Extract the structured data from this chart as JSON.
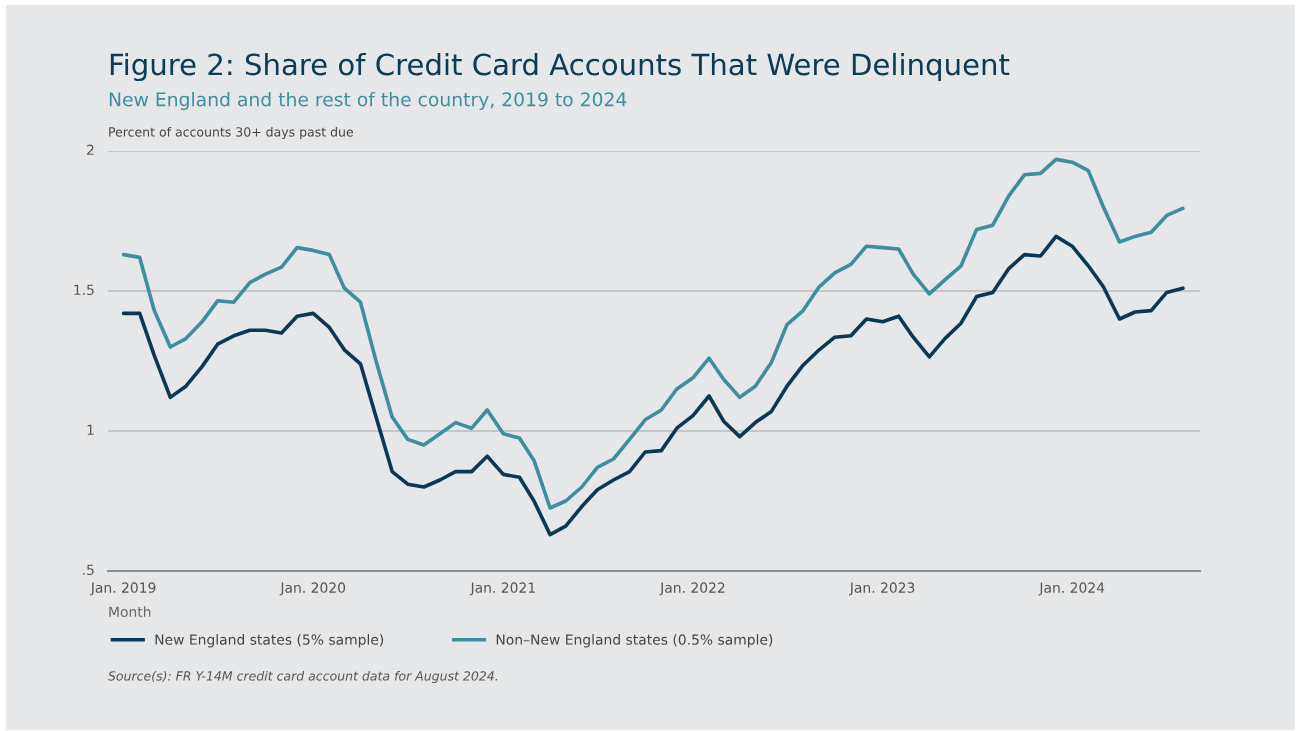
{
  "chart_data": {
    "type": "line",
    "title": "Figure 2: Share of Credit Card Accounts That Were Delinquent",
    "subtitle": "New England and the rest of the country, 2019 to 2024",
    "ylabel": "Percent of accounts 30+ days past due",
    "xlabel": "Month",
    "x": [
      "2019-01",
      "2019-02",
      "2019-03",
      "2019-04",
      "2019-05",
      "2019-06",
      "2019-07",
      "2019-08",
      "2019-09",
      "2019-10",
      "2019-11",
      "2019-12",
      "2020-01",
      "2020-02",
      "2020-03",
      "2020-04",
      "2020-05",
      "2020-06",
      "2020-07",
      "2020-08",
      "2020-09",
      "2020-10",
      "2020-11",
      "2020-12",
      "2021-01",
      "2021-02",
      "2021-03",
      "2021-04",
      "2021-05",
      "2021-06",
      "2021-07",
      "2021-08",
      "2021-09",
      "2021-10",
      "2021-11",
      "2021-12",
      "2022-01",
      "2022-02",
      "2022-03",
      "2022-04",
      "2022-05",
      "2022-06",
      "2022-07",
      "2022-08",
      "2022-09",
      "2022-10",
      "2022-11",
      "2022-12",
      "2023-01",
      "2023-02",
      "2023-03",
      "2023-04",
      "2023-05",
      "2023-06",
      "2023-07",
      "2023-08",
      "2023-09",
      "2023-10",
      "2023-11",
      "2023-12",
      "2024-01",
      "2024-02",
      "2024-03",
      "2024-04",
      "2024-05",
      "2024-06",
      "2024-07",
      "2024-08"
    ],
    "series": [
      {
        "name": "New England states (5% sample)",
        "color": "#0b3954",
        "values": [
          1.42,
          1.42,
          1.27,
          1.12,
          1.16,
          1.23,
          1.31,
          1.34,
          1.36,
          1.36,
          1.35,
          1.41,
          1.42,
          1.37,
          1.29,
          1.24,
          1.05,
          0.855,
          0.81,
          0.8,
          0.825,
          0.855,
          0.855,
          0.91,
          0.845,
          0.835,
          0.75,
          0.63,
          0.66,
          0.73,
          0.79,
          0.825,
          0.855,
          0.925,
          0.93,
          1.01,
          1.055,
          1.125,
          1.035,
          0.98,
          1.03,
          1.07,
          1.16,
          1.235,
          1.29,
          1.335,
          1.34,
          1.4,
          1.39,
          1.41,
          1.335,
          1.265,
          1.33,
          1.385,
          1.48,
          1.495,
          1.58,
          1.63,
          1.625,
          1.695,
          1.66,
          1.59,
          1.515,
          1.4,
          1.425,
          1.43,
          1.495,
          1.51
        ]
      },
      {
        "name": "Non–New England states (0.5% sample)",
        "color": "#3e8e9d",
        "values": [
          1.63,
          1.62,
          1.43,
          1.3,
          1.33,
          1.39,
          1.465,
          1.46,
          1.53,
          1.56,
          1.585,
          1.655,
          1.645,
          1.63,
          1.51,
          1.46,
          1.25,
          1.05,
          0.97,
          0.95,
          0.99,
          1.03,
          1.01,
          1.075,
          0.99,
          0.975,
          0.895,
          0.725,
          0.75,
          0.8,
          0.87,
          0.9,
          0.97,
          1.04,
          1.075,
          1.15,
          1.19,
          1.26,
          1.185,
          1.12,
          1.16,
          1.245,
          1.38,
          1.43,
          1.515,
          1.565,
          1.595,
          1.66,
          1.655,
          1.65,
          1.56,
          1.49,
          1.54,
          1.59,
          1.72,
          1.735,
          1.84,
          1.915,
          1.92,
          1.97,
          1.96,
          1.93,
          1.8,
          1.675,
          1.695,
          1.71,
          1.77,
          1.795
        ]
      }
    ],
    "xlim": [
      "2018-12-02",
      "2024-09-03"
    ],
    "xticks": [
      {
        "value": "2019-01",
        "label": "Jan. 2019"
      },
      {
        "value": "2020-01",
        "label": "Jan. 2020"
      },
      {
        "value": "2021-01",
        "label": "Jan. 2021"
      },
      {
        "value": "2022-01",
        "label": "Jan. 2022"
      },
      {
        "value": "2023-01",
        "label": "Jan. 2023"
      },
      {
        "value": "2024-01",
        "label": "Jan. 2024"
      }
    ],
    "ylim": [
      0.5,
      2
    ],
    "yticks": [
      {
        "value": 0.5,
        "label": ".5"
      },
      1,
      1.5,
      2
    ],
    "grid": "y",
    "legend": "bottom",
    "marker": "none",
    "line_style": "solid",
    "annotations": [
      "Source(s): FR Y-14M credit card account data for August 2024."
    ]
  }
}
